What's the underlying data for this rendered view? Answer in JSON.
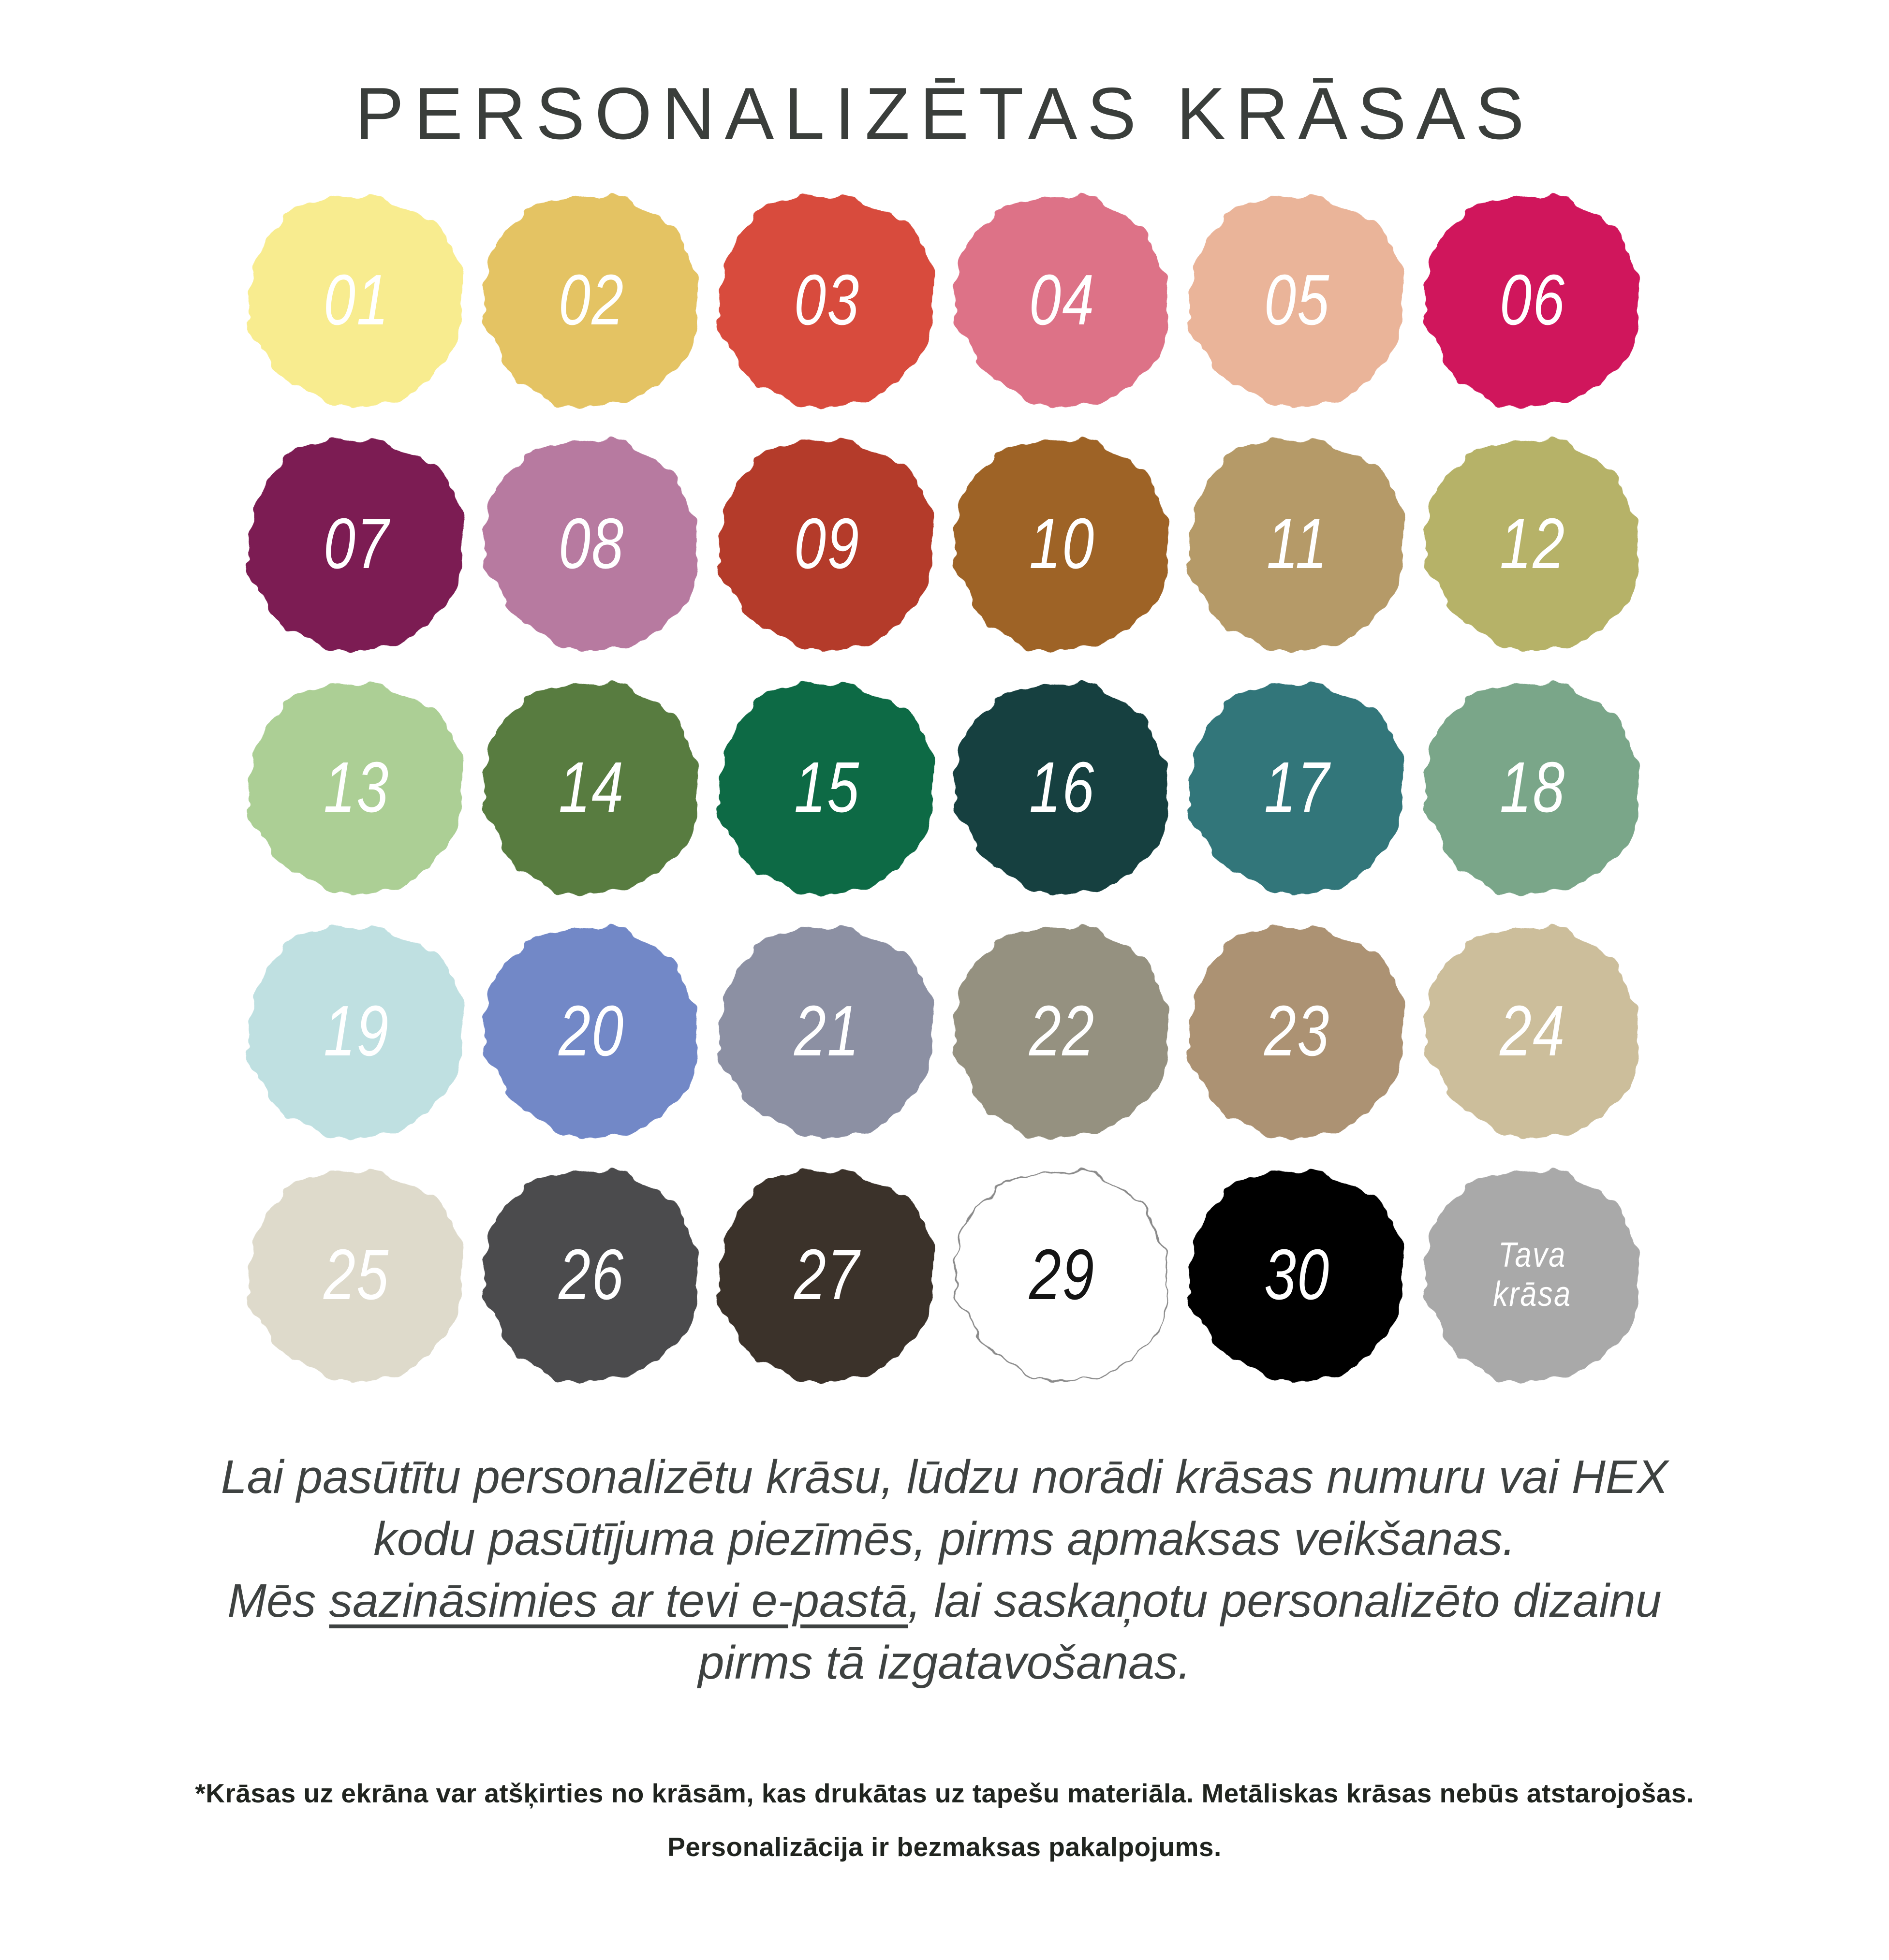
{
  "title": "PERSONALIZĒTAS KRĀSAS",
  "palette": {
    "swatches": [
      {
        "label": "01",
        "color": "#F8EC8F",
        "text": "#FFFFFF"
      },
      {
        "label": "02",
        "color": "#E4C364",
        "text": "#FFFFFF"
      },
      {
        "label": "03",
        "color": "#D84B3C",
        "text": "#FFFFFF"
      },
      {
        "label": "04",
        "color": "#DD7287",
        "text": "#FFFFFF"
      },
      {
        "label": "05",
        "color": "#EAB499",
        "text": "#FFFFFF"
      },
      {
        "label": "06",
        "color": "#D0135C",
        "text": "#FFFFFF"
      },
      {
        "label": "07",
        "color": "#7C1E52",
        "text": "#FFFFFF"
      },
      {
        "label": "08",
        "color": "#B77AA0",
        "text": "#FFFFFF"
      },
      {
        "label": "09",
        "color": "#B43A29",
        "text": "#FFFFFF"
      },
      {
        "label": "10",
        "color": "#9E6427",
        "text": "#FFFFFF"
      },
      {
        "label": "11",
        "color": "#B59A68",
        "text": "#FFFFFF"
      },
      {
        "label": "12",
        "color": "#B6B268",
        "text": "#FFFFFF"
      },
      {
        "label": "13",
        "color": "#ACCF95",
        "text": "#FFFFFF"
      },
      {
        "label": "14",
        "color": "#587C40",
        "text": "#FFFFFF"
      },
      {
        "label": "15",
        "color": "#0B6B45",
        "text": "#FFFFFF"
      },
      {
        "label": "16",
        "color": "#17403F",
        "text": "#FFFFFF"
      },
      {
        "label": "17",
        "color": "#31767A",
        "text": "#FFFFFF"
      },
      {
        "label": "18",
        "color": "#7AA689",
        "text": "#FFFFFF"
      },
      {
        "label": "19",
        "color": "#BFE0E1",
        "text": "#FFFFFF"
      },
      {
        "label": "20",
        "color": "#7288C7",
        "text": "#FFFFFF"
      },
      {
        "label": "21",
        "color": "#8C90A3",
        "text": "#FFFFFF"
      },
      {
        "label": "22",
        "color": "#959180",
        "text": "#FFFFFF"
      },
      {
        "label": "23",
        "color": "#AC9273",
        "text": "#FFFFFF"
      },
      {
        "label": "24",
        "color": "#CCBE9B",
        "text": "#FFFFFF"
      },
      {
        "label": "25",
        "color": "#DEDACB",
        "text": "#FFFFFF"
      },
      {
        "label": "26",
        "color": "#4B4B4D",
        "text": "#FFFFFF"
      },
      {
        "label": "27",
        "color": "#3A332A",
        "text": "#FFFFFF"
      },
      {
        "label": "29",
        "color": "#FFFFFF",
        "text": "#141414",
        "outline": "#8A8A8A"
      },
      {
        "label": "30",
        "color": "#060606",
        "text": "#FFFFFF"
      },
      {
        "label": "Tava krāsa",
        "color": "#A9A9A9",
        "text": "#FFFFFF",
        "two_line": true
      }
    ]
  },
  "description": {
    "line1": "Lai pasūtītu personalizētu krāsu, lūdzu norādi krāsas numuru vai HEX",
    "line2": "kodu pasūtījuma piezīmēs, pirms apmaksas veikšanas.",
    "line3_pre": "Mēs ",
    "line3_underlined": "sazināsimies ar tevi e-pastā",
    "line3_post": ", lai saskaņotu personalizēto dizainu",
    "line4": "pirms tā izgatavošanas."
  },
  "footnote": {
    "line1": "*Krāsas uz ekrāna var atšķirties no krāsām, kas drukātas uz tapešu materiāla. Metāliskas krāsas nebūs atstarojošas.",
    "line2": "Personalizācija ir bezmaksas pakalpojums."
  }
}
